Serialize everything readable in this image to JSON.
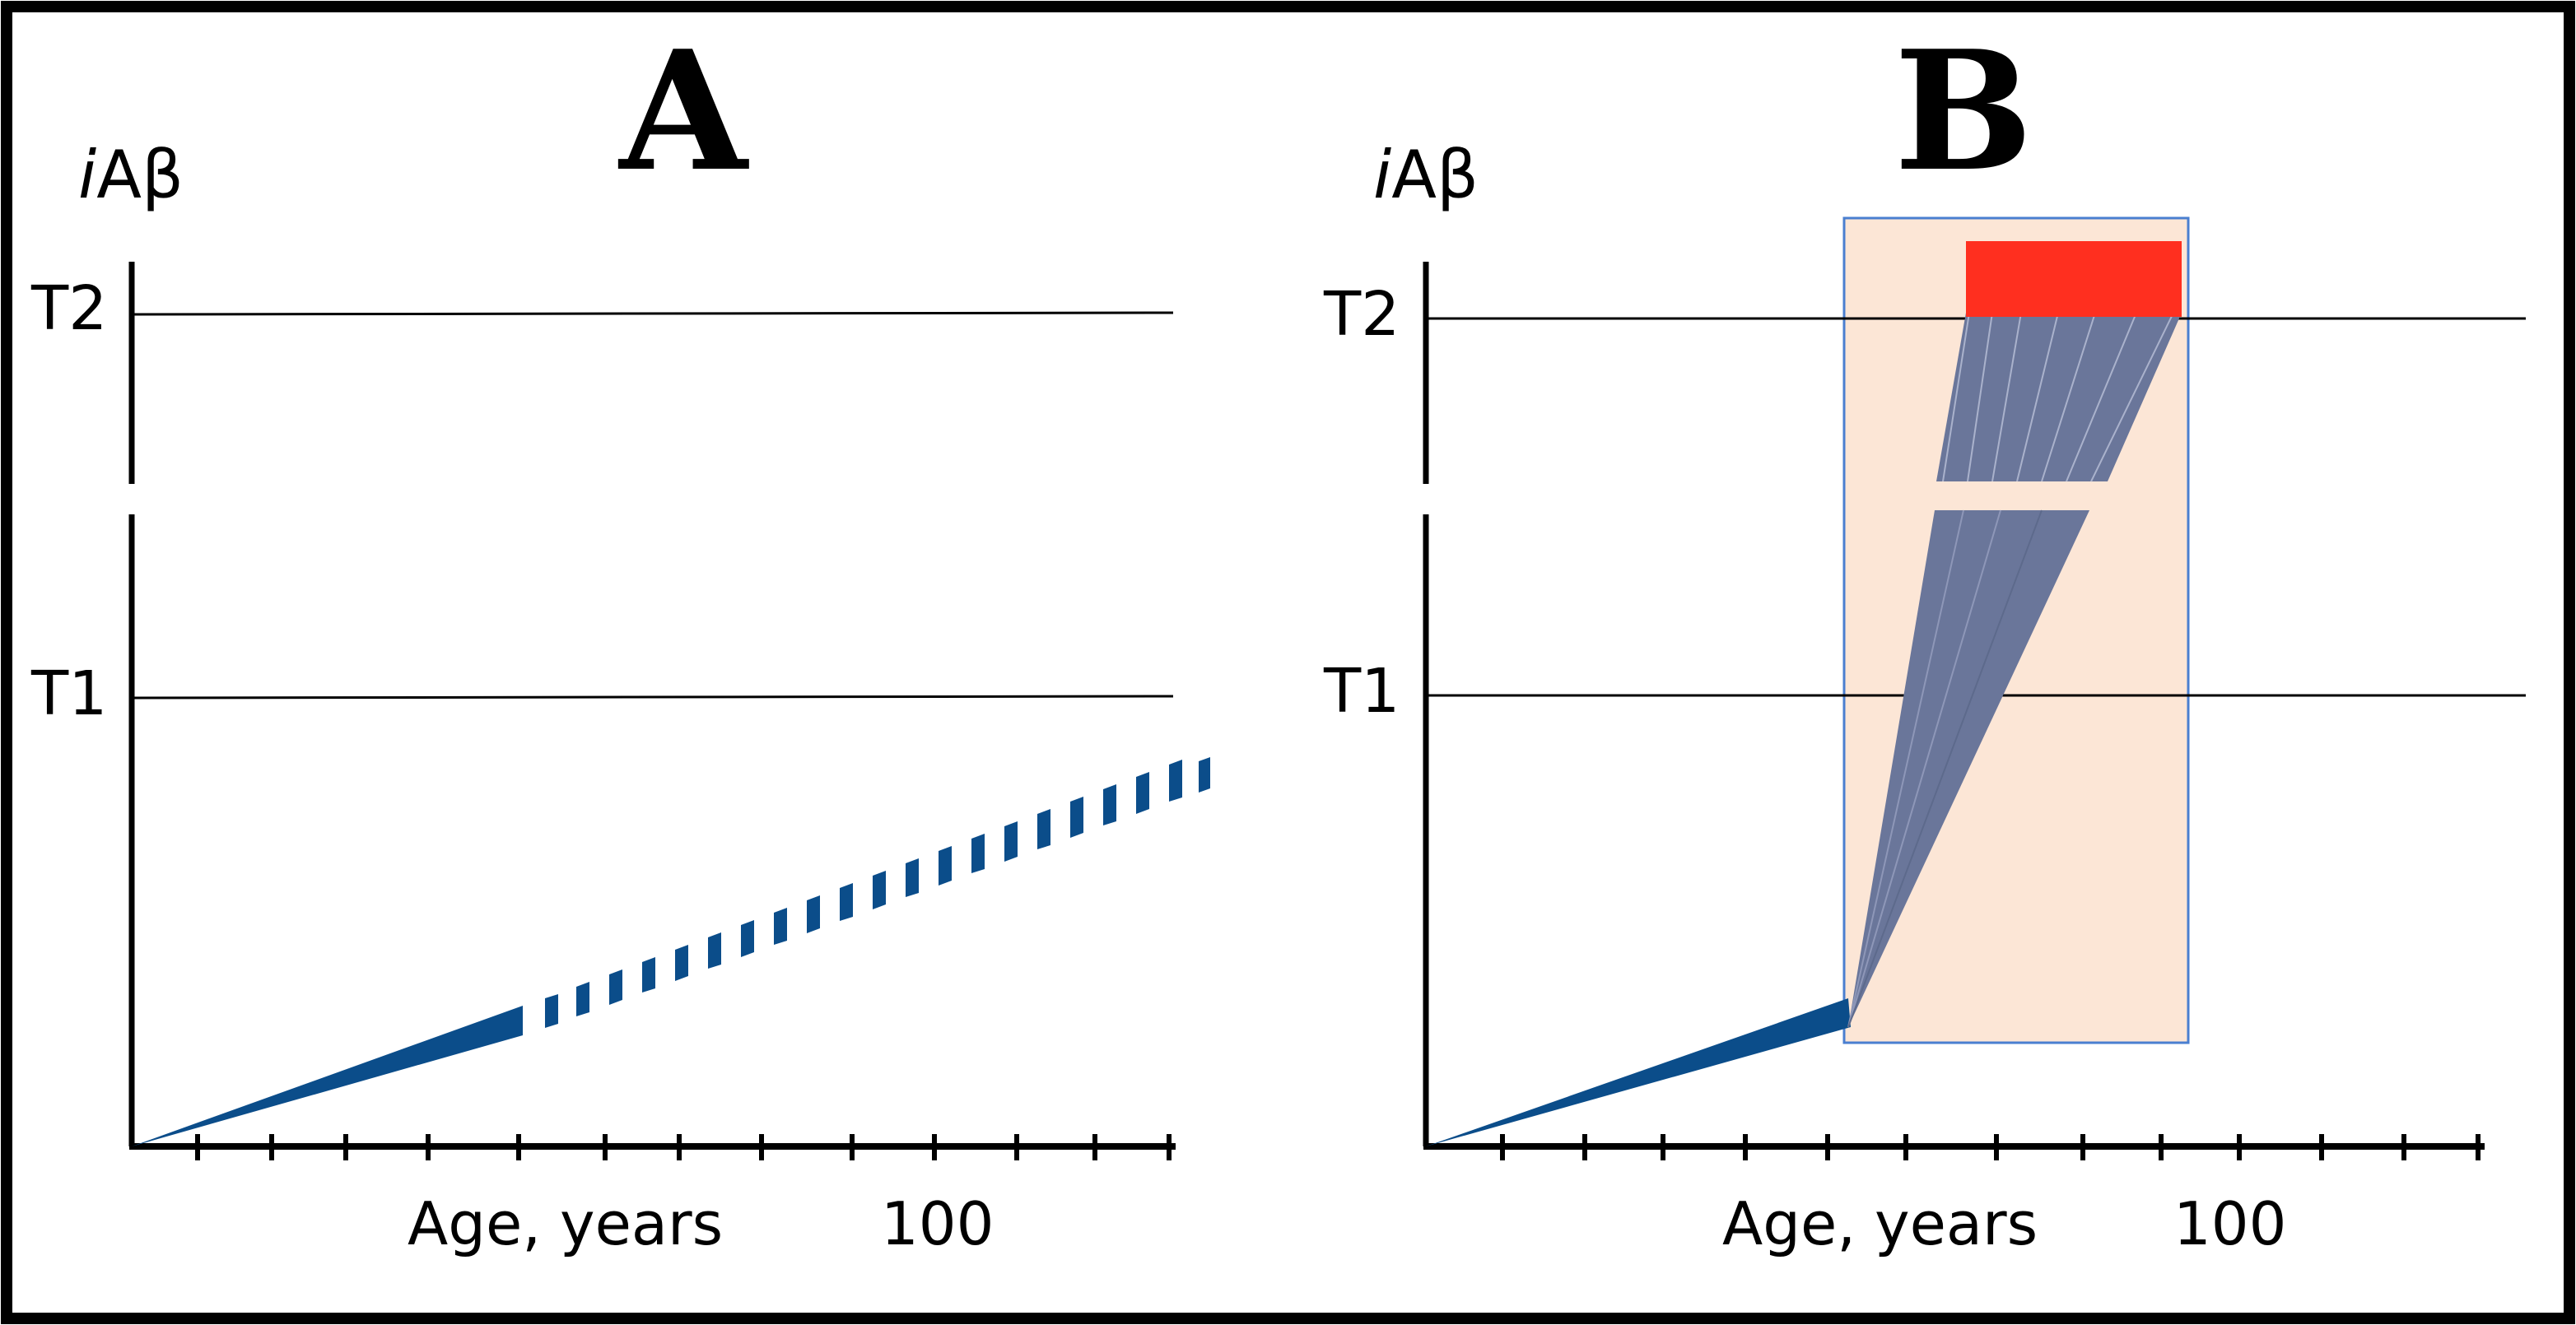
{
  "figure": {
    "panels": [
      {
        "letter": "A",
        "y_axis": {
          "prefix": "i",
          "label": "Aβ"
        },
        "thresholds": [
          {
            "label": "T2"
          },
          {
            "label": "T1"
          }
        ],
        "x_axis": {
          "label": "Age, years",
          "tick_value": "100"
        }
      },
      {
        "letter": "B",
        "y_axis": {
          "prefix": "i",
          "label": "Aβ"
        },
        "thresholds": [
          {
            "label": "T2"
          },
          {
            "label": "T1"
          }
        ],
        "x_axis": {
          "label": "Age, years",
          "tick_value": "100"
        }
      }
    ],
    "colors": {
      "trajectory": "#0b4d8a",
      "trajectory_fan": "#6a769a",
      "highlight_fill": "#fce6d6",
      "highlight_border": "#4a7fd0",
      "disease_box": "#ff2f1f",
      "axis": "#000000"
    }
  }
}
